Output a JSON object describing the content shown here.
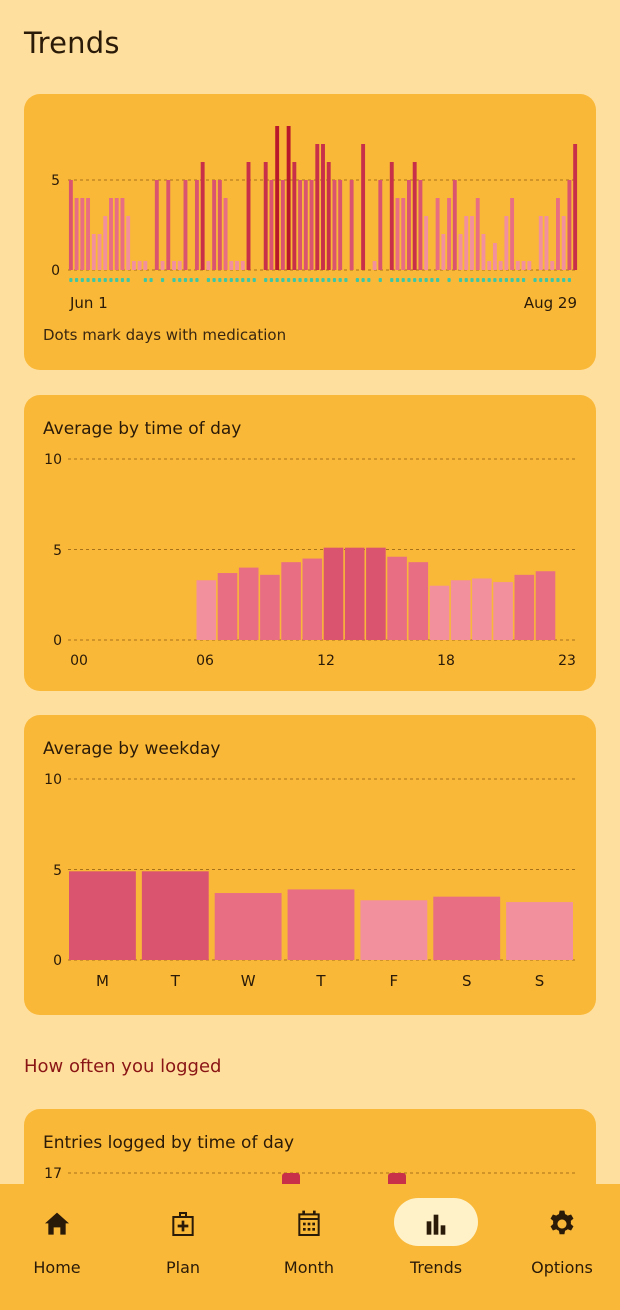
{
  "page": {
    "title": "Trends"
  },
  "daily_card": {
    "y_ticks": [
      "0",
      "5"
    ],
    "x_start": "Jun 1",
    "x_end": "Aug 29",
    "caption": "Dots mark days with medication"
  },
  "time_of_day_card": {
    "title": "Average by time of day",
    "y_ticks": [
      "0",
      "5",
      "10"
    ],
    "x_ticks": [
      "00",
      "06",
      "12",
      "18",
      "23"
    ]
  },
  "weekday_card": {
    "title": "Average by weekday",
    "y_ticks": [
      "0",
      "5",
      "10"
    ],
    "x_ticks": [
      "M",
      "T",
      "W",
      "T",
      "F",
      "S",
      "S"
    ]
  },
  "logged_section": {
    "title": "How often you logged"
  },
  "entries_card": {
    "title": "Entries logged by time of day",
    "y_tick_top": "17"
  },
  "nav": {
    "items": [
      {
        "label": "Home",
        "icon": "home-icon",
        "active": false
      },
      {
        "label": "Plan",
        "icon": "medkit-icon",
        "active": false
      },
      {
        "label": "Month",
        "icon": "calendar-icon",
        "active": false
      },
      {
        "label": "Trends",
        "icon": "bar-chart-icon",
        "active": true
      },
      {
        "label": "Options",
        "icon": "gear-icon",
        "active": false
      }
    ]
  },
  "colors": {
    "background": "#FFDF9E",
    "card": "#F9B838",
    "pale_pink": "#F2909E",
    "pink": "#E86E84",
    "rose": "#DA5470",
    "crimson": "#C8304A",
    "deep_red": "#B81A2C",
    "dot_teal": "#3DC7A6",
    "section_red": "#8A1515"
  },
  "chart_data": [
    {
      "type": "bar",
      "title": "",
      "x": {
        "start": "Jun 1",
        "end": "Aug 29"
      },
      "ylim": [
        0,
        10
      ],
      "values": [
        5,
        4,
        4,
        4,
        2,
        2,
        3,
        4,
        4,
        4,
        3,
        0.5,
        0.5,
        0.5,
        0,
        5,
        0.5,
        5,
        0.5,
        0.5,
        5,
        0,
        5,
        6,
        0.5,
        5,
        5,
        4,
        0.5,
        0.5,
        0.5,
        6,
        0,
        0,
        6,
        5,
        8,
        5,
        8,
        6,
        5,
        5,
        5,
        7,
        7,
        6,
        5,
        5,
        0,
        5,
        0,
        7,
        0,
        0.5,
        5,
        0,
        6,
        4,
        4,
        5,
        6,
        5,
        3,
        0,
        4,
        2,
        4,
        5,
        2,
        3,
        3,
        4,
        2,
        0.5,
        1.5,
        0.5,
        3,
        4,
        0.5,
        0.5,
        0.5,
        0,
        3,
        3,
        0.5,
        4,
        3,
        5,
        7
      ],
      "medication_days": [
        1,
        1,
        1,
        1,
        1,
        1,
        1,
        1,
        1,
        1,
        1,
        0,
        0,
        1,
        1,
        0,
        1,
        0,
        1,
        1,
        1,
        1,
        1,
        0,
        1,
        1,
        1,
        1,
        1,
        1,
        1,
        1,
        1,
        0,
        1,
        1,
        1,
        1,
        1,
        1,
        1,
        1,
        1,
        1,
        1,
        1,
        1,
        1,
        1,
        0,
        1,
        1,
        1,
        0,
        1,
        0,
        1,
        1,
        1,
        1,
        1,
        1,
        1,
        1,
        1,
        0,
        1,
        0,
        1,
        1,
        1,
        1,
        1,
        1,
        1,
        1,
        1,
        1,
        1,
        1,
        0,
        1,
        1,
        1,
        1,
        1,
        1,
        1,
        0
      ],
      "caption": "Dots mark days with medication"
    },
    {
      "type": "bar",
      "title": "Average by time of day",
      "categories": [
        "06",
        "07",
        "08",
        "09",
        "10",
        "11",
        "12",
        "13",
        "14",
        "15",
        "16",
        "17",
        "18",
        "19",
        "20",
        "21",
        "22"
      ],
      "values": [
        3.3,
        3.7,
        4.0,
        3.6,
        4.3,
        4.5,
        5.1,
        5.1,
        5.1,
        4.6,
        4.3,
        3.0,
        3.3,
        3.4,
        3.2,
        3.6,
        3.8
      ],
      "x_tick_labels": [
        "00",
        "06",
        "12",
        "18",
        "23"
      ],
      "ylim": [
        0,
        10
      ]
    },
    {
      "type": "bar",
      "title": "Average by weekday",
      "categories": [
        "M",
        "T",
        "W",
        "T",
        "F",
        "S",
        "S"
      ],
      "values": [
        4.9,
        4.9,
        3.7,
        3.9,
        3.3,
        3.5,
        3.2
      ],
      "ylim": [
        0,
        10
      ]
    },
    {
      "type": "bar",
      "title": "Entries logged by time of day",
      "ylim": [
        0,
        17
      ]
    }
  ]
}
